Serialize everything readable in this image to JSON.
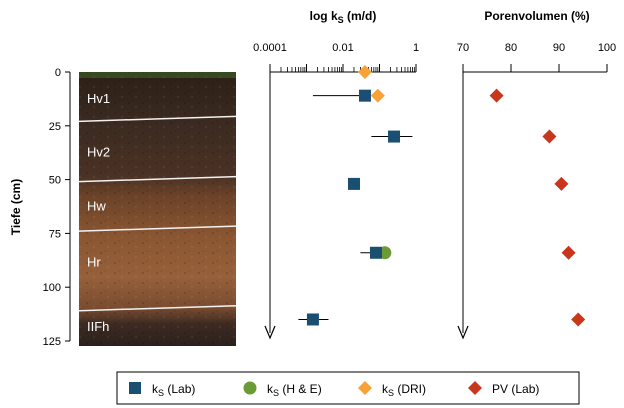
{
  "colors": {
    "ks_lab": "#1b4f72",
    "ks_he": "#6a9b35",
    "ks_dri": "#f7a136",
    "pv_lab": "#c8371c"
  },
  "chart_data": [
    {
      "type": "scatter",
      "panel": "soil-profile",
      "ylabel": "Tiefe (cm)",
      "ylim": [
        0,
        125
      ],
      "yticks": [
        "0",
        "25",
        "50",
        "75",
        "100",
        "125"
      ],
      "horizons": [
        {
          "label": "Hv1",
          "depth": 12
        },
        {
          "label": "Hv2",
          "depth": 37
        },
        {
          "label": "Hw",
          "depth": 62
        },
        {
          "label": "Hr",
          "depth": 88
        },
        {
          "label": "IIFh",
          "depth": 118
        }
      ],
      "boundaries": [
        22,
        50,
        73,
        110
      ]
    },
    {
      "type": "scatter",
      "title_main": "log k",
      "title_sub": "S",
      "title_unit": " (m/d)",
      "xscale": "log",
      "xlim": [
        0.0001,
        1
      ],
      "xticks": [
        "0.0001",
        "0.01",
        "1"
      ],
      "ylim": [
        0,
        125
      ],
      "series": [
        {
          "key": "ks_lab",
          "marker": "square",
          "points": [
            {
              "x": 0.04,
              "y": 11,
              "xerr": [
                0.0015,
                0.04
              ]
            },
            {
              "x": 0.25,
              "y": 30,
              "xerr": [
                0.06,
                0.8
              ]
            },
            {
              "x": 0.02,
              "y": 52
            },
            {
              "x": 0.08,
              "y": 84,
              "xerr": [
                0.03,
                0.1
              ]
            },
            {
              "x": 0.0015,
              "y": 115,
              "xerr": [
                0.0006,
                0.004
              ]
            }
          ]
        },
        {
          "key": "ks_he",
          "marker": "circle",
          "points": [
            {
              "x": 0.14,
              "y": 84
            }
          ]
        },
        {
          "key": "ks_dri",
          "marker": "diamond",
          "points": [
            {
              "x": 0.04,
              "y": 0
            },
            {
              "x": 0.09,
              "y": 11
            }
          ]
        }
      ]
    },
    {
      "type": "scatter",
      "title": "Porenvolumen (%)",
      "xlim": [
        70,
        100
      ],
      "xticks": [
        "70",
        "80",
        "90",
        "100"
      ],
      "ylim": [
        0,
        125
      ],
      "series": [
        {
          "key": "pv_lab",
          "marker": "diamond",
          "points": [
            {
              "x": 77,
              "y": 11
            },
            {
              "x": 88,
              "y": 30
            },
            {
              "x": 90.5,
              "y": 52
            },
            {
              "x": 92,
              "y": 84
            },
            {
              "x": 94,
              "y": 115
            }
          ]
        }
      ]
    }
  ],
  "legend": {
    "position": "bottom",
    "items": [
      {
        "key": "ks_lab",
        "marker": "square",
        "label_main": "k",
        "label_sub": "S",
        "label_rest": " (Lab)"
      },
      {
        "key": "ks_he",
        "marker": "circle",
        "label_main": "k",
        "label_sub": "S",
        "label_rest": " (H & E)"
      },
      {
        "key": "ks_dri",
        "marker": "diamond",
        "label_main": "k",
        "label_sub": "S",
        "label_rest": " (DRI)"
      },
      {
        "key": "pv_lab",
        "marker": "diamond",
        "label_main": "PV",
        "label_sub": "",
        "label_rest": " (Lab)"
      }
    ]
  }
}
